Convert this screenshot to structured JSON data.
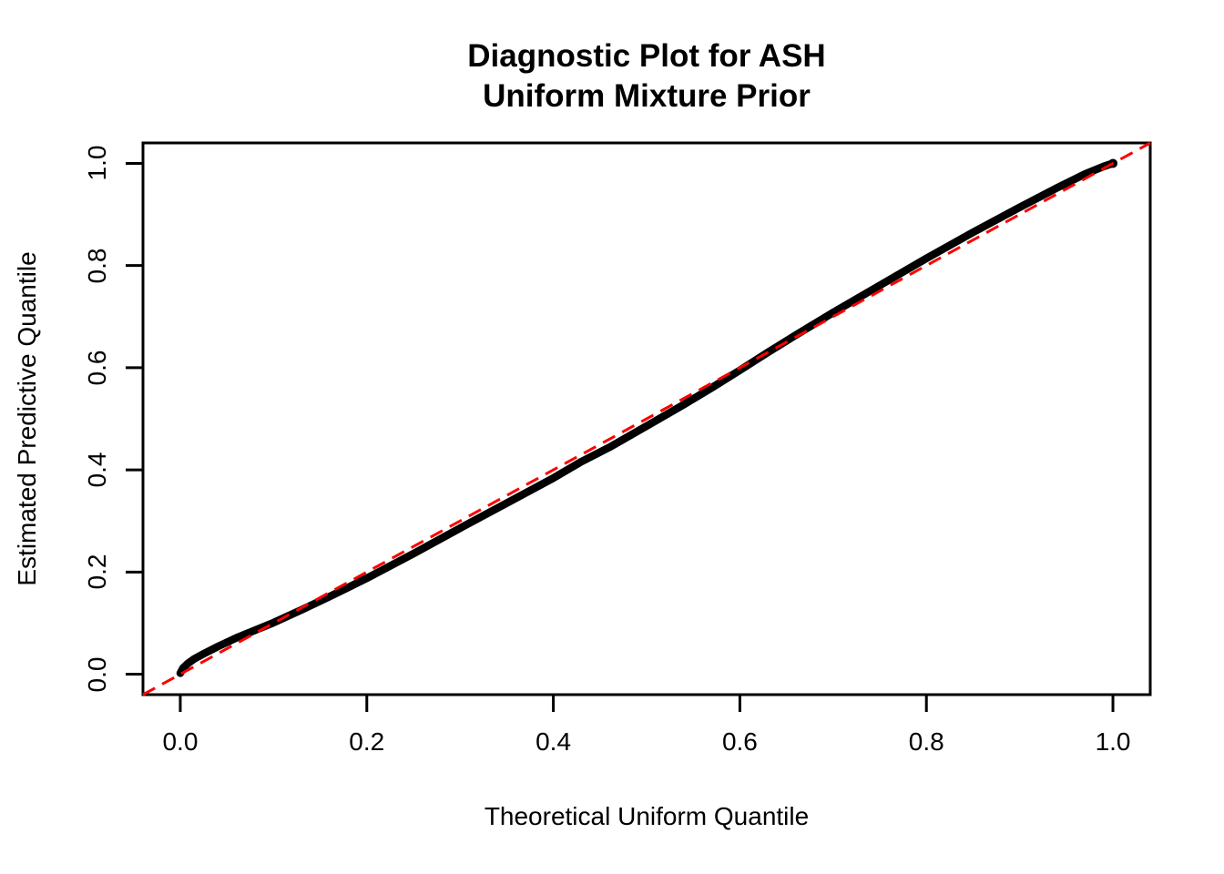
{
  "page": {
    "background": "#ffffff"
  },
  "title": {
    "line1": "Diagnostic Plot for ASH",
    "line2": "Uniform Mixture Prior"
  },
  "chart_data": {
    "type": "scatter",
    "title": "Diagnostic Plot for ASH\nUniform Mixture Prior",
    "xlabel": "Theoretical Uniform Quantile",
    "ylabel": "Estimated Predictive Quantile",
    "xlim": [
      -0.04,
      1.04
    ],
    "ylim": [
      -0.04,
      1.04
    ],
    "x_tick_values": [
      0.0,
      0.2,
      0.4,
      0.6,
      0.8,
      1.0
    ],
    "x_tick_labels": [
      "0.0",
      "0.2",
      "0.4",
      "0.6",
      "0.8",
      "1.0"
    ],
    "y_tick_values": [
      0.0,
      0.2,
      0.4,
      0.6,
      0.8,
      1.0
    ],
    "y_tick_labels": [
      "0.0",
      "0.2",
      "0.4",
      "0.6",
      "0.8",
      "1.0"
    ],
    "grid": false,
    "legend": "none",
    "series": [
      {
        "name": "estimated-vs-theoretical-quantiles",
        "type": "points",
        "marker": "filled-circle",
        "color": "#000000",
        "points": [
          [
            0.0,
            0.002
          ],
          [
            0.003,
            0.012
          ],
          [
            0.008,
            0.021
          ],
          [
            0.015,
            0.03
          ],
          [
            0.025,
            0.04
          ],
          [
            0.04,
            0.054
          ],
          [
            0.06,
            0.071
          ],
          [
            0.08,
            0.086
          ],
          [
            0.1,
            0.101
          ],
          [
            0.13,
            0.126
          ],
          [
            0.16,
            0.152
          ],
          [
            0.2,
            0.188
          ],
          [
            0.25,
            0.236
          ],
          [
            0.3,
            0.286
          ],
          [
            0.35,
            0.335
          ],
          [
            0.4,
            0.384
          ],
          [
            0.43,
            0.416
          ],
          [
            0.46,
            0.444
          ],
          [
            0.5,
            0.486
          ],
          [
            0.54,
            0.528
          ],
          [
            0.57,
            0.561
          ],
          [
            0.6,
            0.595
          ],
          [
            0.63,
            0.63
          ],
          [
            0.66,
            0.664
          ],
          [
            0.7,
            0.708
          ],
          [
            0.75,
            0.761
          ],
          [
            0.8,
            0.814
          ],
          [
            0.85,
            0.865
          ],
          [
            0.9,
            0.914
          ],
          [
            0.94,
            0.952
          ],
          [
            0.97,
            0.979
          ],
          [
            0.99,
            0.994
          ],
          [
            1.0,
            1.0
          ]
        ]
      },
      {
        "name": "identity-reference-line",
        "type": "line",
        "style": "dashed",
        "color": "#FF0000",
        "from": [
          -0.04,
          -0.04
        ],
        "to": [
          1.04,
          1.04
        ]
      }
    ]
  },
  "colors": {
    "background": "#ffffff",
    "frame": "#000000",
    "points": "#000000",
    "reference_line": "#FF0000",
    "text": "#000000"
  }
}
